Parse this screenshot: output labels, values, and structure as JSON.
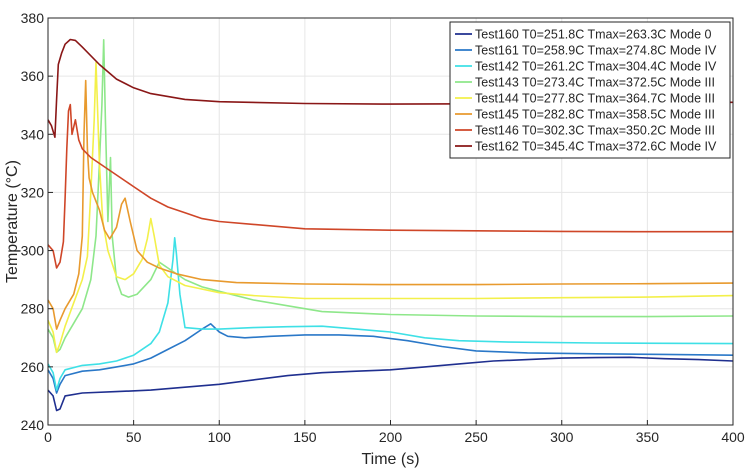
{
  "chart_data": {
    "type": "line",
    "title": "",
    "xlabel": "Time (s)",
    "ylabel": "Temperature (°C)",
    "xlim": [
      0,
      400
    ],
    "ylim": [
      240,
      380
    ],
    "xticks": [
      0,
      50,
      100,
      150,
      200,
      250,
      300,
      350,
      400
    ],
    "yticks": [
      240,
      260,
      280,
      300,
      320,
      340,
      360,
      380
    ],
    "grid": true,
    "legend_position": "top-right",
    "series": [
      {
        "name": "Test160 T0=251.8C Tmax=263.3C Mode 0",
        "color": "#1f2f8f",
        "points": [
          [
            0,
            252
          ],
          [
            3,
            250
          ],
          [
            5,
            245
          ],
          [
            7,
            245.5
          ],
          [
            10,
            250
          ],
          [
            20,
            251
          ],
          [
            40,
            251.5
          ],
          [
            60,
            252
          ],
          [
            80,
            253
          ],
          [
            100,
            254
          ],
          [
            120,
            255.5
          ],
          [
            140,
            257
          ],
          [
            160,
            258
          ],
          [
            180,
            258.5
          ],
          [
            200,
            259
          ],
          [
            220,
            260
          ],
          [
            240,
            261
          ],
          [
            260,
            262
          ],
          [
            280,
            262.5
          ],
          [
            300,
            263
          ],
          [
            320,
            263.2
          ],
          [
            340,
            263.3
          ],
          [
            360,
            262.8
          ],
          [
            380,
            262.5
          ],
          [
            400,
            262
          ]
        ]
      },
      {
        "name": "Test161 T0=258.9C Tmax=274.8C Mode IV",
        "color": "#2a78c8",
        "points": [
          [
            0,
            259
          ],
          [
            3,
            256
          ],
          [
            5,
            251
          ],
          [
            7,
            254
          ],
          [
            10,
            257
          ],
          [
            20,
            258.5
          ],
          [
            30,
            259
          ],
          [
            40,
            260
          ],
          [
            50,
            261
          ],
          [
            60,
            263
          ],
          [
            70,
            266
          ],
          [
            80,
            269
          ],
          [
            90,
            273
          ],
          [
            95,
            274.8
          ],
          [
            100,
            272
          ],
          [
            105,
            270.5
          ],
          [
            115,
            270
          ],
          [
            130,
            270.5
          ],
          [
            150,
            271
          ],
          [
            170,
            271
          ],
          [
            190,
            270.5
          ],
          [
            210,
            269
          ],
          [
            230,
            267
          ],
          [
            250,
            265.5
          ],
          [
            280,
            264.8
          ],
          [
            320,
            264.5
          ],
          [
            360,
            264.3
          ],
          [
            400,
            264
          ]
        ]
      },
      {
        "name": "Test142 T0=261.2C Tmax=304.4C Mode IV",
        "color": "#3ee0e6",
        "points": [
          [
            0,
            261
          ],
          [
            3,
            258
          ],
          [
            5,
            252
          ],
          [
            7,
            256
          ],
          [
            10,
            259
          ],
          [
            20,
            260.5
          ],
          [
            30,
            261
          ],
          [
            40,
            262
          ],
          [
            50,
            264
          ],
          [
            60,
            268
          ],
          [
            65,
            272
          ],
          [
            70,
            282
          ],
          [
            73,
            297
          ],
          [
            74,
            304.4
          ],
          [
            75,
            299
          ],
          [
            77,
            285
          ],
          [
            80,
            273.5
          ],
          [
            90,
            273
          ],
          [
            100,
            273
          ],
          [
            120,
            273.5
          ],
          [
            140,
            273.8
          ],
          [
            160,
            274
          ],
          [
            180,
            273
          ],
          [
            200,
            272
          ],
          [
            220,
            270
          ],
          [
            240,
            269
          ],
          [
            270,
            268.5
          ],
          [
            320,
            268.2
          ],
          [
            360,
            268.1
          ],
          [
            400,
            268
          ]
        ]
      },
      {
        "name": "Test143 T0=273.4C Tmax=372.5C Mode III",
        "color": "#8ee78a",
        "points": [
          [
            0,
            273
          ],
          [
            3,
            270
          ],
          [
            5,
            265
          ],
          [
            7,
            266
          ],
          [
            10,
            270
          ],
          [
            15,
            275
          ],
          [
            20,
            280
          ],
          [
            25,
            290
          ],
          [
            28,
            305
          ],
          [
            30,
            330
          ],
          [
            31.5,
            350
          ],
          [
            32.5,
            372.5
          ],
          [
            33.5,
            345
          ],
          [
            35,
            310
          ],
          [
            36.5,
            332
          ],
          [
            37.5,
            305
          ],
          [
            40,
            290
          ],
          [
            43,
            285
          ],
          [
            47,
            284
          ],
          [
            52,
            285
          ],
          [
            60,
            290
          ],
          [
            65,
            296
          ],
          [
            70,
            294
          ],
          [
            80,
            290
          ],
          [
            90,
            287.5
          ],
          [
            100,
            286
          ],
          [
            120,
            283
          ],
          [
            140,
            281
          ],
          [
            160,
            279
          ],
          [
            180,
            278.5
          ],
          [
            200,
            278
          ],
          [
            250,
            277.5
          ],
          [
            300,
            277.3
          ],
          [
            350,
            277.3
          ],
          [
            400,
            277.5
          ]
        ]
      },
      {
        "name": "Test144 T0=277.8C Tmax=364.7C Mode III",
        "color": "#f3f04a",
        "points": [
          [
            0,
            276
          ],
          [
            3,
            272
          ],
          [
            5,
            265
          ],
          [
            7,
            268
          ],
          [
            10,
            274
          ],
          [
            15,
            282
          ],
          [
            20,
            290
          ],
          [
            23,
            298
          ],
          [
            25,
            320
          ],
          [
            27,
            345
          ],
          [
            28,
            364.7
          ],
          [
            30,
            330
          ],
          [
            32,
            310
          ],
          [
            35,
            300
          ],
          [
            40,
            291
          ],
          [
            45,
            290
          ],
          [
            50,
            292
          ],
          [
            55,
            297
          ],
          [
            58,
            304
          ],
          [
            60,
            311
          ],
          [
            62,
            305
          ],
          [
            65,
            295
          ],
          [
            70,
            291
          ],
          [
            80,
            288
          ],
          [
            100,
            285.5
          ],
          [
            120,
            284.5
          ],
          [
            150,
            283.5
          ],
          [
            200,
            283.5
          ],
          [
            250,
            283.5
          ],
          [
            300,
            283.8
          ],
          [
            350,
            284
          ],
          [
            400,
            284.5
          ]
        ]
      },
      {
        "name": "Test145 T0=282.8C Tmax=358.5C Mode III",
        "color": "#e89a2e",
        "points": [
          [
            0,
            283
          ],
          [
            3,
            280
          ],
          [
            5,
            273
          ],
          [
            7,
            276
          ],
          [
            10,
            280
          ],
          [
            15,
            285
          ],
          [
            18,
            292
          ],
          [
            20,
            305
          ],
          [
            21,
            340
          ],
          [
            22,
            358.5
          ],
          [
            23,
            335
          ],
          [
            24,
            325
          ],
          [
            26,
            320
          ],
          [
            30,
            314
          ],
          [
            33,
            307
          ],
          [
            36,
            304
          ],
          [
            40,
            308
          ],
          [
            43,
            316
          ],
          [
            45,
            318
          ],
          [
            48,
            310
          ],
          [
            52,
            300
          ],
          [
            58,
            296
          ],
          [
            65,
            294
          ],
          [
            75,
            292
          ],
          [
            90,
            290
          ],
          [
            110,
            289
          ],
          [
            150,
            288.5
          ],
          [
            200,
            288.3
          ],
          [
            250,
            288.3
          ],
          [
            300,
            288.5
          ],
          [
            350,
            288.6
          ],
          [
            400,
            288.8
          ]
        ]
      },
      {
        "name": "Test146 T0=302.3C Tmax=350.2C Mode III",
        "color": "#cf4628",
        "points": [
          [
            0,
            302
          ],
          [
            3,
            300
          ],
          [
            5,
            294
          ],
          [
            7,
            296
          ],
          [
            9,
            303
          ],
          [
            10,
            318
          ],
          [
            11,
            335
          ],
          [
            12,
            348
          ],
          [
            13,
            350.2
          ],
          [
            14,
            340
          ],
          [
            16,
            345
          ],
          [
            18,
            338
          ],
          [
            20,
            335
          ],
          [
            25,
            332
          ],
          [
            30,
            330
          ],
          [
            40,
            326
          ],
          [
            50,
            322
          ],
          [
            60,
            318
          ],
          [
            70,
            315
          ],
          [
            80,
            313
          ],
          [
            90,
            311
          ],
          [
            100,
            310
          ],
          [
            120,
            309
          ],
          [
            150,
            307.5
          ],
          [
            200,
            307
          ],
          [
            250,
            306.8
          ],
          [
            300,
            306.6
          ],
          [
            350,
            306.5
          ],
          [
            400,
            306.5
          ]
        ]
      },
      {
        "name": "Test162 T0=345.4C Tmax=372.6C Mode IV",
        "color": "#8a1717",
        "points": [
          [
            0,
            345
          ],
          [
            2,
            343
          ],
          [
            4,
            339
          ],
          [
            5,
            352
          ],
          [
            6,
            364
          ],
          [
            8,
            368
          ],
          [
            10,
            371
          ],
          [
            13,
            372.6
          ],
          [
            16,
            372.3
          ],
          [
            20,
            370
          ],
          [
            30,
            364
          ],
          [
            40,
            359
          ],
          [
            50,
            356
          ],
          [
            60,
            354
          ],
          [
            80,
            352
          ],
          [
            100,
            351.2
          ],
          [
            150,
            350.6
          ],
          [
            200,
            350.4
          ],
          [
            250,
            350.5
          ],
          [
            300,
            350.6
          ],
          [
            350,
            350.8
          ],
          [
            400,
            351
          ]
        ]
      }
    ]
  }
}
